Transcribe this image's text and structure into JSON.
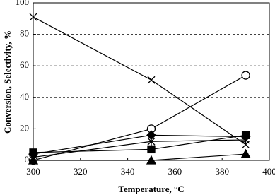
{
  "chart_data": {
    "type": "line",
    "x_label": "Temperature, °C",
    "y_label": "Conversion, Selectivity, %",
    "x": [
      300,
      350,
      390
    ],
    "series": [
      {
        "marker": "x",
        "color": "#000000",
        "values": [
          91,
          51,
          10
        ]
      },
      {
        "marker": "circle",
        "color": "#000000",
        "values": [
          0,
          20,
          54
        ]
      },
      {
        "marker": "square",
        "color": "#000000",
        "values": [
          5,
          7,
          16
        ]
      },
      {
        "marker": "diamond",
        "color": "#000000",
        "values": [
          4,
          16,
          15
        ]
      },
      {
        "marker": "star",
        "color": "#000000",
        "values": [
          2,
          12,
          13
        ]
      },
      {
        "marker": "triangle",
        "color": "#000000",
        "values": [
          0,
          0,
          4
        ]
      }
    ],
    "xlim": [
      300,
      400
    ],
    "xticks": [
      300,
      320,
      340,
      360,
      380,
      400
    ],
    "ylim": [
      0,
      100
    ],
    "yticks": [
      0,
      20,
      40,
      60,
      80,
      100
    ],
    "grid": true
  }
}
